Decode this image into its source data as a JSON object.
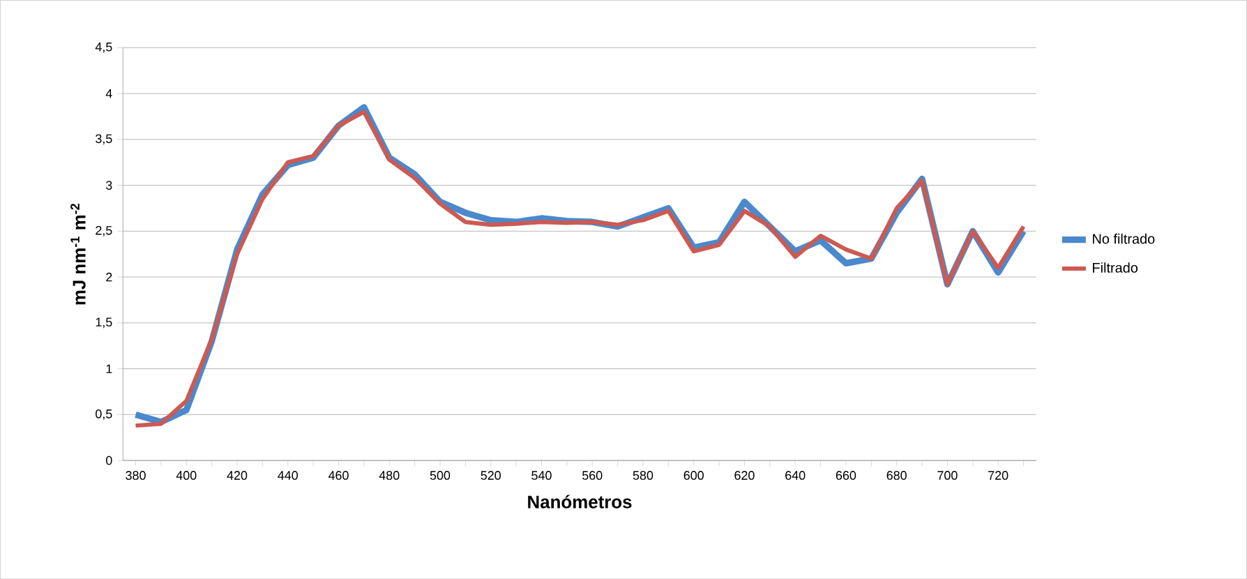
{
  "chart_data": {
    "type": "line",
    "xlabel": "Nanómetros",
    "ylabel": "mJ nm$^{-1}$ m$^{-2}$",
    "categories": [
      "380",
      null,
      "400",
      null,
      "420",
      null,
      "440",
      null,
      "460",
      null,
      "480",
      null,
      "500",
      null,
      "520",
      null,
      "540",
      null,
      "560",
      null,
      "580",
      null,
      "600",
      null,
      "620",
      null,
      "640",
      null,
      "660",
      null,
      "680",
      null,
      "700",
      null,
      "720",
      null
    ],
    "series": [
      {
        "name": "No filtrado",
        "color": "#4a89cc",
        "values": [
          0.5,
          0.42,
          0.55,
          1.3,
          2.3,
          2.9,
          3.22,
          3.3,
          3.65,
          3.85,
          3.3,
          3.12,
          2.82,
          2.7,
          2.62,
          2.6,
          2.64,
          2.61,
          2.6,
          2.55,
          2.65,
          2.75,
          2.32,
          2.38,
          2.82,
          2.55,
          2.28,
          2.4,
          2.15,
          2.2,
          2.7,
          3.07,
          1.92,
          2.5,
          2.05,
          2.5
        ]
      },
      {
        "name": "Filtrado",
        "color": "#cc5a52",
        "values": [
          0.38,
          0.4,
          0.65,
          1.32,
          2.25,
          2.85,
          3.25,
          3.32,
          3.65,
          3.8,
          3.28,
          3.08,
          2.8,
          2.6,
          2.57,
          2.58,
          2.6,
          2.59,
          2.6,
          2.57,
          2.62,
          2.72,
          2.28,
          2.35,
          2.72,
          2.55,
          2.22,
          2.45,
          2.3,
          2.2,
          2.75,
          3.05,
          1.92,
          2.5,
          2.1,
          2.55
        ]
      }
    ],
    "ylim": [
      0,
      4.5
    ],
    "yticks": [
      0,
      {
        "value": 0.5,
        "label": "0,5"
      },
      1,
      {
        "value": 1.5,
        "label": "1,5"
      },
      2,
      {
        "value": 2.5,
        "label": "2,5"
      },
      3,
      {
        "value": 3.5,
        "label": "3,5"
      },
      4,
      {
        "value": 4.5,
        "label": "4,5"
      }
    ],
    "grid": "y",
    "legend": "right",
    "marker": "none",
    "line_style": "solid"
  }
}
